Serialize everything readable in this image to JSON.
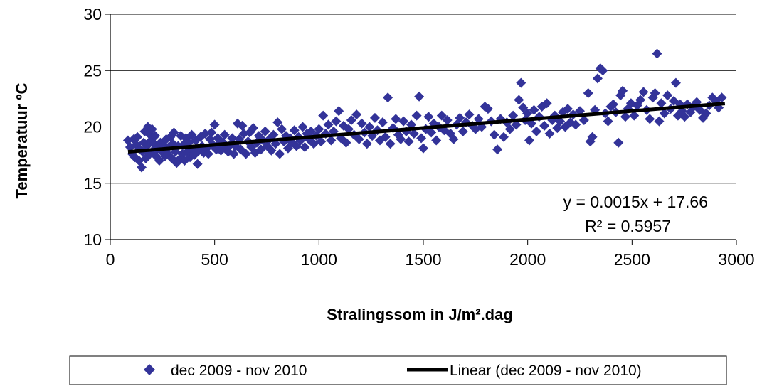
{
  "chart_data": {
    "type": "scatter",
    "title": "",
    "xlabel": "Stralingssom in J/m².dag",
    "ylabel": "Temperatuur ºC",
    "xlim": [
      0,
      3000
    ],
    "ylim": [
      10,
      30
    ],
    "x_ticks": [
      "0",
      "500",
      "1000",
      "1500",
      "2000",
      "2500",
      "3000"
    ],
    "y_ticks": [
      "10",
      "15",
      "20",
      "25",
      "30"
    ],
    "grid": "horizontal",
    "legend_position": "bottom",
    "colors": {
      "markers": "#333399",
      "trendline": "#000000"
    },
    "series": [
      {
        "name": "dec 2009 - nov 2010",
        "marker": "diamond",
        "points": [
          [
            85,
            18.8
          ],
          [
            95,
            18.2
          ],
          [
            105,
            17.6
          ],
          [
            112,
            18.9
          ],
          [
            118,
            17.3
          ],
          [
            125,
            18.4
          ],
          [
            130,
            19.1
          ],
          [
            138,
            17.0
          ],
          [
            142,
            18.0
          ],
          [
            150,
            16.4
          ],
          [
            155,
            17.8
          ],
          [
            160,
            18.6
          ],
          [
            165,
            19.6
          ],
          [
            170,
            17.2
          ],
          [
            175,
            18.3
          ],
          [
            180,
            20.0
          ],
          [
            185,
            19.4
          ],
          [
            190,
            17.6
          ],
          [
            195,
            18.8
          ],
          [
            200,
            19.8
          ],
          [
            205,
            17.9
          ],
          [
            210,
            18.5
          ],
          [
            215,
            19.2
          ],
          [
            220,
            17.4
          ],
          [
            228,
            18.1
          ],
          [
            235,
            17.0
          ],
          [
            240,
            18.6
          ],
          [
            248,
            17.8
          ],
          [
            255,
            18.3
          ],
          [
            262,
            17.4
          ],
          [
            268,
            18.9
          ],
          [
            275,
            17.6
          ],
          [
            280,
            18.2
          ],
          [
            288,
            19.1
          ],
          [
            295,
            17.2
          ],
          [
            300,
            18.5
          ],
          [
            305,
            19.5
          ],
          [
            312,
            17.8
          ],
          [
            318,
            16.8
          ],
          [
            325,
            18.3
          ],
          [
            330,
            17.1
          ],
          [
            338,
            19.2
          ],
          [
            345,
            17.6
          ],
          [
            350,
            18.4
          ],
          [
            356,
            17.0
          ],
          [
            362,
            19.0
          ],
          [
            370,
            17.8
          ],
          [
            376,
            18.6
          ],
          [
            382,
            17.3
          ],
          [
            390,
            19.3
          ],
          [
            396,
            18.0
          ],
          [
            402,
            17.5
          ],
          [
            410,
            18.8
          ],
          [
            418,
            16.7
          ],
          [
            425,
            17.9
          ],
          [
            432,
            19.1
          ],
          [
            440,
            18.3
          ],
          [
            448,
            17.7
          ],
          [
            455,
            19.4
          ],
          [
            462,
            18.1
          ],
          [
            470,
            17.6
          ],
          [
            478,
            18.9
          ],
          [
            485,
            19.5
          ],
          [
            492,
            18.4
          ],
          [
            500,
            20.2
          ],
          [
            508,
            18.0
          ],
          [
            515,
            19.0
          ],
          [
            522,
            18.5
          ],
          [
            530,
            17.9
          ],
          [
            540,
            18.6
          ],
          [
            548,
            19.3
          ],
          [
            556,
            18.2
          ],
          [
            565,
            17.8
          ],
          [
            575,
            18.4
          ],
          [
            584,
            19.0
          ],
          [
            592,
            17.6
          ],
          [
            600,
            18.3
          ],
          [
            610,
            20.3
          ],
          [
            618,
            18.9
          ],
          [
            625,
            18.0
          ],
          [
            632,
            20.1
          ],
          [
            640,
            19.4
          ],
          [
            650,
            17.6
          ],
          [
            660,
            18.7
          ],
          [
            668,
            19.5
          ],
          [
            676,
            18.2
          ],
          [
            685,
            19.9
          ],
          [
            694,
            17.7
          ],
          [
            702,
            18.6
          ],
          [
            712,
            19.2
          ],
          [
            722,
            18.0
          ],
          [
            732,
            18.8
          ],
          [
            742,
            19.6
          ],
          [
            752,
            18.3
          ],
          [
            762,
            18.9
          ],
          [
            772,
            17.9
          ],
          [
            782,
            19.3
          ],
          [
            792,
            18.5
          ],
          [
            802,
            20.4
          ],
          [
            812,
            17.6
          ],
          [
            822,
            19.8
          ],
          [
            832,
            18.7
          ],
          [
            842,
            19.2
          ],
          [
            852,
            18.1
          ],
          [
            862,
            19.0
          ],
          [
            872,
            18.6
          ],
          [
            882,
            19.7
          ],
          [
            892,
            18.3
          ],
          [
            902,
            19.1
          ],
          [
            912,
            18.8
          ],
          [
            922,
            20.0
          ],
          [
            932,
            18.2
          ],
          [
            942,
            19.4
          ],
          [
            952,
            18.9
          ],
          [
            962,
            19.6
          ],
          [
            975,
            18.5
          ],
          [
            988,
            19.2
          ],
          [
            1000,
            19.8
          ],
          [
            1010,
            18.7
          ],
          [
            1020,
            21.0
          ],
          [
            1032,
            19.4
          ],
          [
            1045,
            20.2
          ],
          [
            1058,
            18.8
          ],
          [
            1070,
            19.6
          ],
          [
            1082,
            20.5
          ],
          [
            1095,
            21.4
          ],
          [
            1105,
            19.0
          ],
          [
            1118,
            20.1
          ],
          [
            1130,
            18.6
          ],
          [
            1142,
            19.8
          ],
          [
            1155,
            20.6
          ],
          [
            1168,
            19.3
          ],
          [
            1180,
            21.1
          ],
          [
            1192,
            18.9
          ],
          [
            1205,
            20.3
          ],
          [
            1218,
            19.5
          ],
          [
            1230,
            18.5
          ],
          [
            1242,
            20.0
          ],
          [
            1255,
            19.2
          ],
          [
            1268,
            20.8
          ],
          [
            1280,
            19.7
          ],
          [
            1292,
            18.8
          ],
          [
            1305,
            20.4
          ],
          [
            1318,
            19.1
          ],
          [
            1330,
            22.6
          ],
          [
            1342,
            18.5
          ],
          [
            1355,
            19.9
          ],
          [
            1368,
            20.7
          ],
          [
            1380,
            19.3
          ],
          [
            1392,
            18.9
          ],
          [
            1405,
            20.5
          ],
          [
            1418,
            19.6
          ],
          [
            1430,
            18.7
          ],
          [
            1442,
            20.2
          ],
          [
            1455,
            19.4
          ],
          [
            1468,
            21.0
          ],
          [
            1480,
            22.7
          ],
          [
            1490,
            19.0
          ],
          [
            1500,
            18.1
          ],
          [
            1512,
            19.8
          ],
          [
            1525,
            20.9
          ],
          [
            1538,
            19.5
          ],
          [
            1550,
            20.3
          ],
          [
            1562,
            18.8
          ],
          [
            1575,
            20.0
          ],
          [
            1588,
            21.0
          ],
          [
            1600,
            19.7
          ],
          [
            1615,
            20.6
          ],
          [
            1630,
            19.4
          ],
          [
            1645,
            18.9
          ],
          [
            1660,
            20.2
          ],
          [
            1675,
            20.8
          ],
          [
            1690,
            19.6
          ],
          [
            1705,
            20.4
          ],
          [
            1720,
            21.1
          ],
          [
            1735,
            20.1
          ],
          [
            1750,
            19.8
          ],
          [
            1765,
            20.7
          ],
          [
            1780,
            20.0
          ],
          [
            1795,
            21.8
          ],
          [
            1810,
            21.6
          ],
          [
            1825,
            20.5
          ],
          [
            1840,
            19.3
          ],
          [
            1855,
            18.0
          ],
          [
            1870,
            20.7
          ],
          [
            1885,
            19.1
          ],
          [
            1900,
            20.4
          ],
          [
            1915,
            19.8
          ],
          [
            1930,
            21.0
          ],
          [
            1945,
            20.2
          ],
          [
            1958,
            22.4
          ],
          [
            1968,
            23.9
          ],
          [
            1978,
            21.7
          ],
          [
            1988,
            20.6
          ],
          [
            1998,
            21.2
          ],
          [
            2008,
            18.8
          ],
          [
            2018,
            20.3
          ],
          [
            2030,
            21.5
          ],
          [
            2042,
            19.6
          ],
          [
            2055,
            20.9
          ],
          [
            2068,
            21.8
          ],
          [
            2080,
            20.1
          ],
          [
            2092,
            22.1
          ],
          [
            2105,
            19.4
          ],
          [
            2118,
            20.6
          ],
          [
            2130,
            21.0
          ],
          [
            2142,
            19.9
          ],
          [
            2155,
            20.5
          ],
          [
            2168,
            21.3
          ],
          [
            2180,
            20.0
          ],
          [
            2192,
            21.6
          ],
          [
            2205,
            20.4
          ],
          [
            2218,
            21.1
          ],
          [
            2230,
            20.2
          ],
          [
            2250,
            21.4
          ],
          [
            2270,
            20.6
          ],
          [
            2290,
            23.0
          ],
          [
            2300,
            18.7
          ],
          [
            2310,
            19.1
          ],
          [
            2322,
            21.5
          ],
          [
            2335,
            24.3
          ],
          [
            2348,
            25.2
          ],
          [
            2360,
            25.0
          ],
          [
            2372,
            21.2
          ],
          [
            2385,
            20.5
          ],
          [
            2398,
            21.8
          ],
          [
            2410,
            22.0
          ],
          [
            2422,
            21.3
          ],
          [
            2435,
            18.6
          ],
          [
            2445,
            22.8
          ],
          [
            2455,
            23.2
          ],
          [
            2468,
            20.9
          ],
          [
            2480,
            21.6
          ],
          [
            2495,
            22.1
          ],
          [
            2510,
            21.0
          ],
          [
            2525,
            21.9
          ],
          [
            2540,
            22.4
          ],
          [
            2555,
            23.1
          ],
          [
            2570,
            21.5
          ],
          [
            2585,
            20.7
          ],
          [
            2600,
            22.6
          ],
          [
            2610,
            23.0
          ],
          [
            2620,
            26.5
          ],
          [
            2630,
            20.5
          ],
          [
            2640,
            22.1
          ],
          [
            2655,
            21.2
          ],
          [
            2670,
            22.8
          ],
          [
            2685,
            21.6
          ],
          [
            2700,
            22.3
          ],
          [
            2710,
            23.9
          ],
          [
            2720,
            21.0
          ],
          [
            2730,
            22.0
          ],
          [
            2740,
            21.4
          ],
          [
            2752,
            20.9
          ],
          [
            2765,
            22.0
          ],
          [
            2780,
            21.3
          ],
          [
            2795,
            21.8
          ],
          [
            2810,
            22.2
          ],
          [
            2825,
            21.5
          ],
          [
            2840,
            20.8
          ],
          [
            2855,
            21.2
          ],
          [
            2870,
            21.9
          ],
          [
            2885,
            22.6
          ],
          [
            2900,
            22.3
          ],
          [
            2915,
            21.7
          ],
          [
            2930,
            22.6
          ]
        ]
      }
    ],
    "trendline": {
      "name": "Linear (dec 2009 - nov 2010)",
      "slope": 0.0015,
      "intercept": 17.66,
      "x_range": [
        85,
        2945
      ],
      "equation": "y = 0.0015x + 17.66",
      "r_squared": "R² = 0.5957"
    }
  }
}
